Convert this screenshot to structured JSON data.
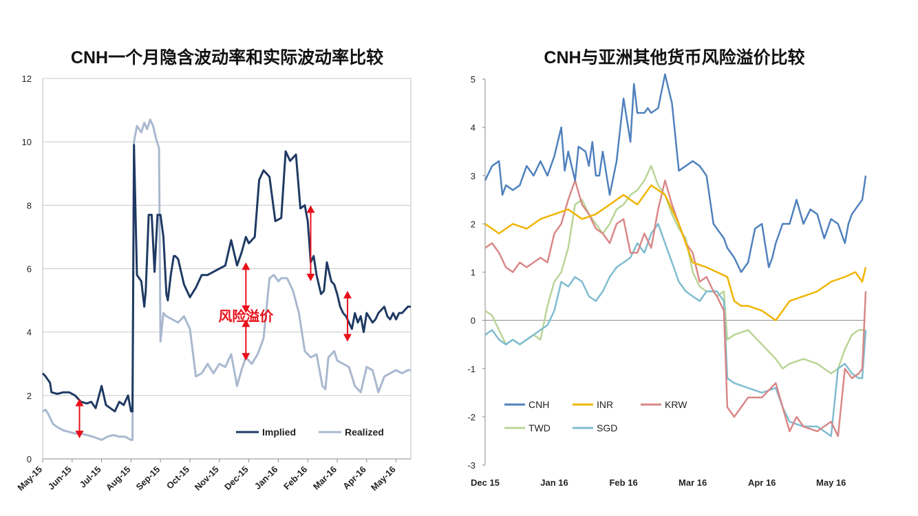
{
  "chart_data": [
    {
      "type": "line",
      "title": "CNH一个月隐含波动率和实际波动率比较",
      "xlabel": "",
      "ylabel": "",
      "ylim": [
        0,
        12
      ],
      "yticks": [
        0,
        2,
        4,
        6,
        8,
        10,
        12
      ],
      "xlim": [
        0,
        12.5
      ],
      "x_tick_labels": [
        "May-15",
        "Jun-15",
        "Jul-15",
        "Aug-15",
        "Sep-15",
        "Oct-15",
        "Nov-15",
        "Dec-15",
        "Jan-16",
        "Feb-16",
        "Mar-16",
        "Apr-16",
        "May-16"
      ],
      "grid": true,
      "legend_position": "bottom-right",
      "annotation": "风险溢价",
      "series": [
        {
          "name": "Implied",
          "color": "#1f3a63",
          "x": [
            0,
            0.1,
            0.25,
            0.3,
            0.5,
            0.7,
            0.9,
            1.1,
            1.3,
            1.5,
            1.65,
            1.8,
            2,
            2.15,
            2.3,
            2.45,
            2.6,
            2.75,
            2.9,
            3.0,
            3.05,
            3.1,
            3.2,
            3.35,
            3.45,
            3.5,
            3.6,
            3.7,
            3.8,
            3.9,
            4.0,
            4.1,
            4.2,
            4.25,
            4.35,
            4.45,
            4.5,
            4.6,
            4.8,
            5.0,
            5.2,
            5.4,
            5.6,
            5.8,
            6.0,
            6.2,
            6.4,
            6.6,
            6.75,
            6.9,
            7.0,
            7.1,
            7.2,
            7.35,
            7.5,
            7.7,
            7.9,
            8.1,
            8.25,
            8.4,
            8.5,
            8.6,
            8.75,
            8.9,
            9.0,
            9.1,
            9.2,
            9.3,
            9.45,
            9.55,
            9.65,
            9.8,
            9.9,
            10.0,
            10.1,
            10.2,
            10.3,
            10.5,
            10.6,
            10.7,
            10.8,
            10.9,
            11.0,
            11.2,
            11.3,
            11.4,
            11.5,
            11.6,
            11.7,
            11.8,
            11.9,
            12.0,
            12.1,
            12.2,
            12.4,
            12.5
          ],
          "values": [
            2.7,
            2.6,
            2.4,
            2.1,
            2.05,
            2.1,
            2.1,
            2.0,
            1.8,
            1.75,
            1.8,
            1.6,
            2.3,
            1.7,
            1.6,
            1.5,
            1.8,
            1.7,
            2.0,
            1.5,
            1.5,
            9.9,
            5.8,
            5.6,
            4.8,
            5.3,
            7.7,
            7.7,
            5.9,
            7.7,
            7.7,
            7.0,
            5.2,
            5.0,
            5.8,
            6.4,
            6.4,
            6.3,
            5.5,
            5.1,
            5.4,
            5.8,
            5.8,
            5.9,
            6.0,
            6.1,
            6.9,
            6.1,
            6.5,
            7.0,
            6.8,
            6.9,
            7.0,
            8.8,
            9.1,
            8.9,
            7.5,
            7.6,
            9.7,
            9.4,
            9.5,
            9.6,
            7.9,
            8.0,
            7.5,
            6.2,
            6.4,
            5.8,
            5.2,
            5.3,
            6.2,
            5.6,
            5.5,
            5.2,
            4.8,
            4.6,
            4.5,
            4.1,
            4.6,
            4.3,
            4.5,
            4.0,
            4.6,
            4.3,
            4.4,
            4.6,
            4.7,
            4.8,
            4.5,
            4.4,
            4.6,
            4.4,
            4.6,
            4.6,
            4.8,
            4.8
          ]
        },
        {
          "name": "Realized",
          "color": "#a9b8cf",
          "x": [
            0,
            0.1,
            0.2,
            0.35,
            0.5,
            0.7,
            0.9,
            1.1,
            1.3,
            1.5,
            1.7,
            1.85,
            2.0,
            2.2,
            2.4,
            2.6,
            2.8,
            3.0,
            3.05,
            3.1,
            3.2,
            3.35,
            3.45,
            3.55,
            3.65,
            3.75,
            3.85,
            3.95,
            4.0,
            4.1,
            4.2,
            4.4,
            4.6,
            4.8,
            5.0,
            5.2,
            5.4,
            5.6,
            5.8,
            6.0,
            6.2,
            6.4,
            6.6,
            6.75,
            6.9,
            7.1,
            7.3,
            7.5,
            7.7,
            7.85,
            8.0,
            8.1,
            8.3,
            8.5,
            8.7,
            8.9,
            9.0,
            9.1,
            9.3,
            9.5,
            9.6,
            9.7,
            9.9,
            10.0,
            10.2,
            10.4,
            10.6,
            10.8,
            11.0,
            11.2,
            11.4,
            11.6,
            11.8,
            12.0,
            12.2,
            12.4,
            12.5
          ],
          "values": [
            1.5,
            1.55,
            1.4,
            1.1,
            1.0,
            0.9,
            0.85,
            0.8,
            0.8,
            0.75,
            0.7,
            0.65,
            0.6,
            0.7,
            0.75,
            0.7,
            0.7,
            0.6,
            0.6,
            10.0,
            10.5,
            10.3,
            10.6,
            10.4,
            10.7,
            10.5,
            10.1,
            9.8,
            3.7,
            4.6,
            4.5,
            4.4,
            4.3,
            4.5,
            4.1,
            2.6,
            2.7,
            3.0,
            2.7,
            3.0,
            2.9,
            3.3,
            2.3,
            2.8,
            3.2,
            3.0,
            3.3,
            3.8,
            5.7,
            5.8,
            5.6,
            5.7,
            5.7,
            5.3,
            4.6,
            3.4,
            3.3,
            3.2,
            3.3,
            2.3,
            2.2,
            3.2,
            3.4,
            3.1,
            3.0,
            2.9,
            2.3,
            2.1,
            2.9,
            2.8,
            2.1,
            2.6,
            2.7,
            2.8,
            2.7,
            2.8,
            2.8
          ]
        }
      ]
    },
    {
      "type": "line",
      "title": "CNH与亚洲其他货币风险溢价比较",
      "xlabel": "",
      "ylabel": "",
      "ylim": [
        -3,
        5
      ],
      "yticks": [
        -3,
        -2,
        -1,
        0,
        1,
        2,
        3,
        4,
        5
      ],
      "xlim": [
        0,
        5.5
      ],
      "x_tick_labels": [
        "Dec 15",
        "Jan 16",
        "Feb 16",
        "Mar 16",
        "Apr 16",
        "May 16"
      ],
      "grid": false,
      "legend_position": "bottom-left",
      "series": [
        {
          "name": "CNH",
          "color": "#4f81bd",
          "x": [
            0,
            0.1,
            0.2,
            0.25,
            0.3,
            0.4,
            0.5,
            0.6,
            0.7,
            0.8,
            0.9,
            1.0,
            1.1,
            1.15,
            1.2,
            1.3,
            1.35,
            1.45,
            1.5,
            1.55,
            1.6,
            1.65,
            1.7,
            1.8,
            1.9,
            2.0,
            2.1,
            2.15,
            2.2,
            2.3,
            2.35,
            2.4,
            2.5,
            2.6,
            2.7,
            2.8,
            2.9,
            3.0,
            3.1,
            3.2,
            3.3,
            3.4,
            3.45,
            3.5,
            3.6,
            3.7,
            3.8,
            3.9,
            4.0,
            4.1,
            4.15,
            4.2,
            4.3,
            4.4,
            4.5,
            4.6,
            4.7,
            4.8,
            4.9,
            5.0,
            5.1,
            5.2,
            5.25,
            5.3,
            5.45,
            5.5
          ],
          "values": [
            2.9,
            3.2,
            3.3,
            2.6,
            2.8,
            2.7,
            2.8,
            3.2,
            3.0,
            3.3,
            3.0,
            3.4,
            4.0,
            3.1,
            3.5,
            2.9,
            3.6,
            3.5,
            3.2,
            3.7,
            3.0,
            3.0,
            3.5,
            2.6,
            3.3,
            4.6,
            3.7,
            4.9,
            4.3,
            4.3,
            4.4,
            4.3,
            4.4,
            5.1,
            4.5,
            3.1,
            3.2,
            3.3,
            3.2,
            3.0,
            2.0,
            1.8,
            1.7,
            1.5,
            1.3,
            1.0,
            1.2,
            1.9,
            2.0,
            1.1,
            1.3,
            1.6,
            2.0,
            2.0,
            2.5,
            2.0,
            2.3,
            2.2,
            1.7,
            2.1,
            2.0,
            1.6,
            2.0,
            2.2,
            2.5,
            3.0
          ]
        },
        {
          "name": "INR",
          "color": "#f0b400",
          "x": [
            0,
            0.2,
            0.4,
            0.6,
            0.8,
            1.0,
            1.2,
            1.4,
            1.6,
            1.8,
            2.0,
            2.2,
            2.4,
            2.5,
            2.6,
            2.8,
            3.0,
            3.2,
            3.35,
            3.5,
            3.6,
            3.7,
            3.8,
            4.0,
            4.2,
            4.4,
            4.6,
            4.8,
            5.0,
            5.2,
            5.35,
            5.45,
            5.5
          ],
          "values": [
            2.0,
            1.8,
            2.0,
            1.9,
            2.1,
            2.2,
            2.3,
            2.1,
            2.2,
            2.4,
            2.6,
            2.4,
            2.8,
            2.7,
            2.6,
            2.0,
            1.2,
            1.1,
            1.0,
            0.9,
            0.4,
            0.3,
            0.3,
            0.2,
            0.0,
            0.4,
            0.5,
            0.6,
            0.8,
            0.9,
            1.0,
            0.8,
            1.1
          ]
        },
        {
          "name": "KRW",
          "color": "#d98787",
          "x": [
            0,
            0.1,
            0.2,
            0.3,
            0.4,
            0.5,
            0.6,
            0.7,
            0.8,
            0.9,
            1.0,
            1.1,
            1.2,
            1.3,
            1.4,
            1.5,
            1.6,
            1.7,
            1.8,
            1.9,
            2.0,
            2.1,
            2.2,
            2.3,
            2.4,
            2.5,
            2.6,
            2.7,
            2.8,
            2.9,
            3.0,
            3.1,
            3.2,
            3.3,
            3.35,
            3.45,
            3.5,
            3.6,
            3.8,
            4.0,
            4.2,
            4.3,
            4.4,
            4.5,
            4.6,
            4.8,
            5.0,
            5.1,
            5.2,
            5.3,
            5.4,
            5.45,
            5.5
          ],
          "values": [
            1.5,
            1.6,
            1.4,
            1.1,
            1.0,
            1.2,
            1.1,
            1.2,
            1.3,
            1.2,
            1.8,
            2.0,
            2.5,
            2.9,
            2.4,
            2.2,
            1.9,
            1.8,
            1.6,
            2.0,
            2.1,
            1.4,
            1.4,
            1.8,
            1.5,
            2.3,
            2.9,
            2.4,
            2.0,
            1.6,
            1.4,
            0.8,
            0.9,
            0.6,
            0.5,
            0.2,
            -1.8,
            -2.0,
            -1.6,
            -1.6,
            -1.3,
            -1.8,
            -2.3,
            -2.0,
            -2.2,
            -2.3,
            -2.1,
            -2.4,
            -1.0,
            -1.2,
            -1.1,
            -1.0,
            0.6
          ]
        },
        {
          "name": "TWD",
          "color": "#b9d596",
          "x": [
            0,
            0.1,
            0.2,
            0.3,
            0.4,
            0.5,
            0.6,
            0.7,
            0.8,
            0.9,
            1.0,
            1.1,
            1.2,
            1.3,
            1.4,
            1.5,
            1.6,
            1.7,
            1.8,
            1.9,
            2.0,
            2.1,
            2.2,
            2.3,
            2.4,
            2.5,
            2.6,
            2.7,
            2.8,
            2.9,
            3.0,
            3.1,
            3.2,
            3.3,
            3.35,
            3.45,
            3.5,
            3.6,
            3.8,
            4.0,
            4.2,
            4.3,
            4.4,
            4.6,
            4.8,
            5.0,
            5.1,
            5.2,
            5.3,
            5.4,
            5.45,
            5.5
          ],
          "values": [
            0.2,
            0.1,
            -0.2,
            -0.5,
            -0.4,
            -0.5,
            -0.4,
            -0.3,
            -0.4,
            0.3,
            0.8,
            1.0,
            1.5,
            2.4,
            2.5,
            2.2,
            2.0,
            1.8,
            2.0,
            2.3,
            2.4,
            2.6,
            2.7,
            2.9,
            3.2,
            2.8,
            2.6,
            2.2,
            1.9,
            1.7,
            1.0,
            0.7,
            0.6,
            0.6,
            0.5,
            0.6,
            -0.4,
            -0.3,
            -0.2,
            -0.5,
            -0.8,
            -1.0,
            -0.9,
            -0.8,
            -0.9,
            -1.1,
            -1.0,
            -0.6,
            -0.3,
            -0.2,
            -0.2,
            -0.2
          ]
        },
        {
          "name": "SGD",
          "color": "#7fbcd0",
          "x": [
            0,
            0.1,
            0.2,
            0.3,
            0.4,
            0.5,
            0.6,
            0.7,
            0.8,
            0.9,
            1.0,
            1.1,
            1.2,
            1.3,
            1.4,
            1.5,
            1.6,
            1.7,
            1.8,
            1.9,
            2.0,
            2.1,
            2.2,
            2.3,
            2.4,
            2.5,
            2.6,
            2.7,
            2.8,
            2.9,
            3.0,
            3.1,
            3.2,
            3.3,
            3.35,
            3.45,
            3.5,
            3.6,
            3.8,
            4.0,
            4.2,
            4.3,
            4.4,
            4.6,
            4.8,
            5.0,
            5.1,
            5.2,
            5.3,
            5.4,
            5.45,
            5.5
          ],
          "values": [
            -0.3,
            -0.2,
            -0.4,
            -0.5,
            -0.4,
            -0.5,
            -0.4,
            -0.3,
            -0.2,
            -0.1,
            0.2,
            0.8,
            0.7,
            0.9,
            0.8,
            0.5,
            0.4,
            0.6,
            0.9,
            1.1,
            1.2,
            1.3,
            1.6,
            1.4,
            1.8,
            2.0,
            1.6,
            1.2,
            0.8,
            0.6,
            0.5,
            0.4,
            0.6,
            0.6,
            0.6,
            0.4,
            -1.2,
            -1.3,
            -1.4,
            -1.5,
            -1.4,
            -1.8,
            -2.1,
            -2.2,
            -2.2,
            -2.4,
            -1.0,
            -0.9,
            -1.1,
            -1.2,
            -1.2,
            -0.2
          ]
        }
      ]
    }
  ]
}
